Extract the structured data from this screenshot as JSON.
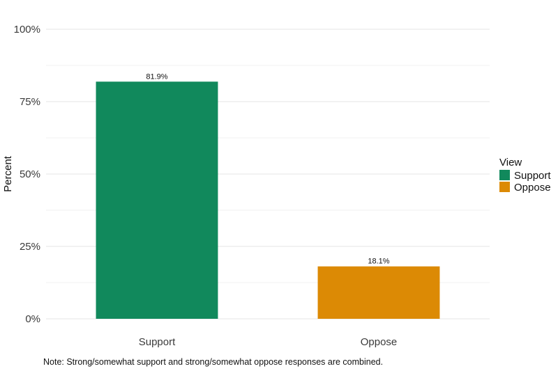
{
  "chart_data": {
    "type": "bar",
    "categories": [
      "Support",
      "Oppose"
    ],
    "values": [
      81.9,
      18.1
    ],
    "data_labels": [
      "81.9%",
      "18.1%"
    ],
    "colors": [
      "#11895c",
      "#dc8a05"
    ],
    "ylabel": "Percent",
    "ylim": [
      0,
      100
    ],
    "yticks": [
      0,
      25,
      50,
      75,
      100
    ],
    "ytick_labels": [
      "0%",
      "25%",
      "50%",
      "75%",
      "100%"
    ],
    "grid": true,
    "legend": {
      "title": "View",
      "position": "right",
      "entries": [
        {
          "label": "Support",
          "color": "#11895c"
        },
        {
          "label": "Oppose",
          "color": "#dc8a05"
        }
      ]
    }
  },
  "note": "Note: Strong/somewhat support and strong/somewhat oppose responses are combined."
}
